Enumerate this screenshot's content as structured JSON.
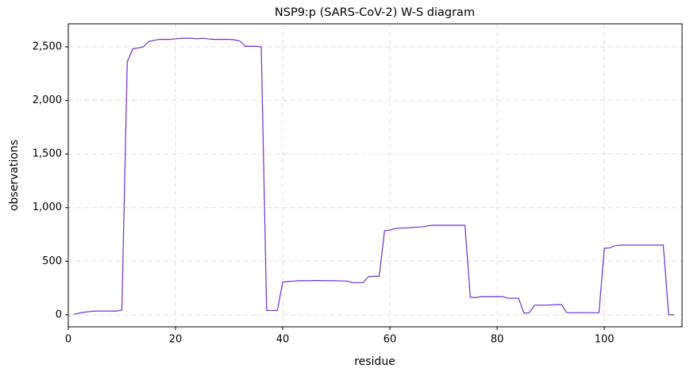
{
  "chart_data": {
    "type": "line",
    "title": "NSP9:p (SARS-CoV-2) W-S diagram",
    "x_label": "residue",
    "y_label": "observations",
    "x": [
      1,
      2,
      3,
      4,
      5,
      6,
      7,
      8,
      9,
      10,
      11,
      12,
      13,
      14,
      15,
      16,
      17,
      18,
      19,
      20,
      21,
      22,
      23,
      24,
      25,
      26,
      27,
      28,
      29,
      30,
      31,
      32,
      33,
      34,
      35,
      36,
      37,
      38,
      39,
      40,
      41,
      42,
      43,
      44,
      45,
      46,
      47,
      48,
      49,
      50,
      51,
      52,
      53,
      54,
      55,
      56,
      57,
      58,
      59,
      60,
      61,
      62,
      63,
      64,
      65,
      66,
      67,
      68,
      69,
      70,
      71,
      72,
      73,
      74,
      75,
      76,
      77,
      78,
      79,
      80,
      81,
      82,
      83,
      84,
      85,
      86,
      87,
      88,
      89,
      90,
      91,
      92,
      93,
      94,
      95,
      96,
      97,
      98,
      99,
      100,
      101,
      102,
      103,
      104,
      105,
      106,
      107,
      108,
      109,
      110,
      111,
      112,
      113
    ],
    "series": [
      {
        "color": "#6a2fd2",
        "values": [
          5,
          15,
          25,
          30,
          35,
          35,
          35,
          35,
          35,
          45,
          2360,
          2480,
          2490,
          2500,
          2550,
          2560,
          2570,
          2570,
          2570,
          2575,
          2580,
          2580,
          2580,
          2575,
          2580,
          2575,
          2570,
          2570,
          2570,
          2570,
          2565,
          2555,
          2505,
          2505,
          2505,
          2500,
          40,
          40,
          40,
          305,
          310,
          315,
          318,
          318,
          318,
          320,
          320,
          318,
          318,
          318,
          316,
          315,
          300,
          300,
          300,
          355,
          360,
          360,
          785,
          790,
          805,
          810,
          810,
          815,
          818,
          820,
          830,
          835,
          835,
          835,
          835,
          835,
          835,
          835,
          165,
          160,
          170,
          170,
          170,
          170,
          170,
          155,
          155,
          155,
          15,
          20,
          90,
          90,
          90,
          92,
          95,
          95,
          20,
          20,
          20,
          20,
          20,
          20,
          20,
          620,
          625,
          645,
          650,
          650,
          650,
          650,
          650,
          650,
          650,
          650,
          650,
          0,
          0
        ]
      }
    ],
    "xlim": [
      0,
      114.5
    ],
    "ylim": [
      -112,
      2715
    ],
    "xticks": [
      0,
      20,
      40,
      60,
      80,
      100
    ],
    "yticks": [
      0,
      500,
      {
        "value": 1000,
        "label": "1,000"
      },
      {
        "value": 1500,
        "label": "1,500"
      },
      {
        "value": 2000,
        "label": "2,000"
      },
      {
        "value": 2500,
        "label": "2,500"
      }
    ],
    "grid": true
  }
}
